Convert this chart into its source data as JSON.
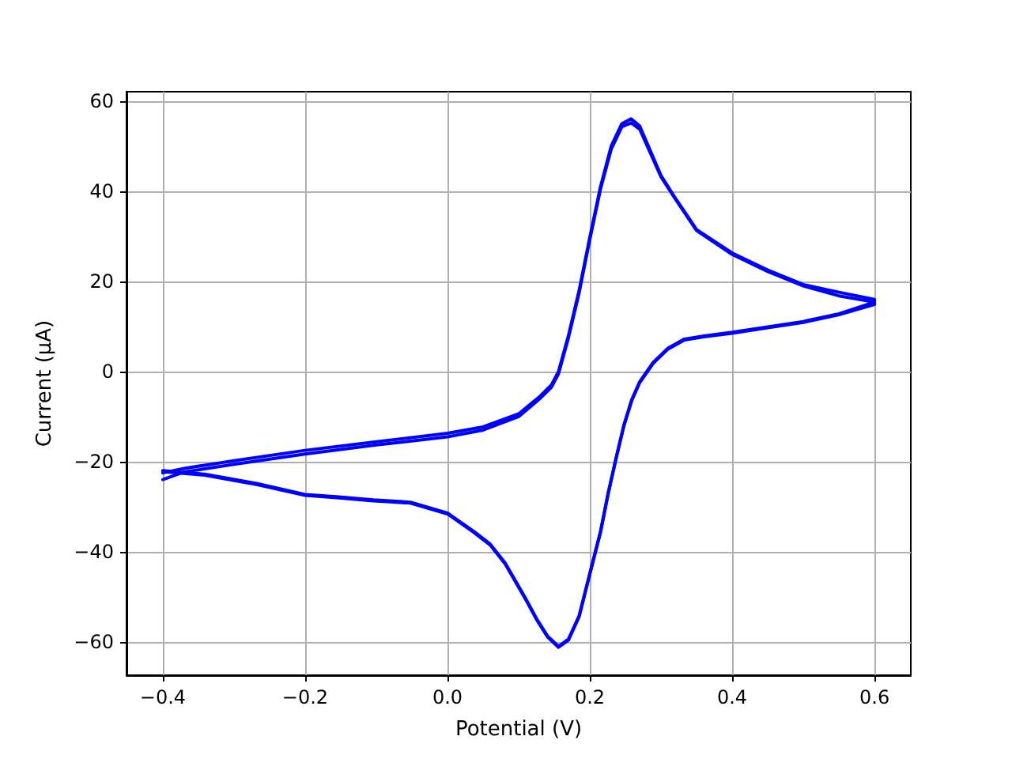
{
  "chart_data": {
    "type": "line",
    "xlabel": "Potential (V)",
    "ylabel": "Current (μA)",
    "xlim": [
      -0.451,
      0.651
    ],
    "ylim": [
      -67.4,
      62.1
    ],
    "xticks": [
      {
        "value": -0.4,
        "label": "−0.4"
      },
      {
        "value": -0.2,
        "label": "−0.2"
      },
      {
        "value": 0,
        "label": "0.0"
      },
      {
        "value": 0.2,
        "label": "0.2"
      },
      {
        "value": 0.4,
        "label": "0.4"
      },
      {
        "value": 0.6,
        "label": "0.6"
      }
    ],
    "yticks": [
      {
        "value": -60,
        "label": "−60"
      },
      {
        "value": -40,
        "label": "−40"
      },
      {
        "value": -20,
        "label": "−20"
      },
      {
        "value": 0,
        "label": "0"
      },
      {
        "value": 20,
        "label": "20"
      },
      {
        "value": 40,
        "label": "40"
      },
      {
        "value": 60,
        "label": "60"
      }
    ],
    "grid": true,
    "marker": "none",
    "line_style": "solid",
    "series": [
      {
        "color": "#0000ff",
        "x": [
          -0.4,
          -0.37,
          -0.3,
          -0.2,
          -0.1,
          0,
          0.05,
          0.1,
          0.13,
          0.146,
          0.156,
          0.17,
          0.185,
          0.2,
          0.215,
          0.23,
          0.245,
          0.258,
          0.27,
          0.285,
          0.3,
          0.318,
          0.35,
          0.4,
          0.45,
          0.5,
          0.55,
          0.6,
          0.6,
          0.55,
          0.5,
          0.45,
          0.4,
          0.36,
          0.333,
          0.31,
          0.289,
          0.27,
          0.259,
          0.248,
          0.237,
          0.226,
          0.215,
          0.2,
          0.185,
          0.17,
          0.156,
          0.141,
          0.125,
          0.111,
          0.095,
          0.081,
          0.06,
          0.037,
          0,
          -0.052,
          -0.104,
          -0.156,
          -0.2,
          -0.267,
          -0.341,
          -0.4
        ],
        "values": [
          -22.5,
          -21.5,
          -19.8,
          -17.5,
          -15.6,
          -13.7,
          -12.3,
          -9.4,
          -5.5,
          -3,
          0,
          8,
          18,
          29.8,
          41,
          50,
          55,
          56.1,
          54.5,
          49,
          43.5,
          39,
          31.5,
          26.3,
          22.5,
          19.3,
          17.6,
          16,
          14.9,
          12.6,
          10.9,
          9.7,
          8.5,
          7.7,
          7,
          5,
          1.8,
          -2.5,
          -6.4,
          -12,
          -19.3,
          -27,
          -35.7,
          -45,
          -54.4,
          -59.6,
          -61.2,
          -59,
          -55,
          -50.9,
          -46.5,
          -42.7,
          -38.5,
          -35.7,
          -31.6,
          -29.2,
          -28.7,
          -28,
          -27.5,
          -25.1,
          -23,
          -22.2
        ]
      },
      {
        "color": "#0000ff",
        "x": [
          -0.4,
          -0.37,
          -0.3,
          -0.2,
          -0.1,
          0,
          0.05,
          0.1,
          0.13,
          0.146,
          0.156,
          0.17,
          0.185,
          0.2,
          0.215,
          0.23,
          0.245,
          0.258,
          0.27,
          0.285,
          0.3,
          0.318,
          0.35,
          0.4,
          0.45,
          0.5,
          0.55,
          0.6,
          0.6,
          0.55,
          0.5,
          0.45,
          0.4,
          0.36,
          0.333,
          0.31,
          0.289,
          0.27,
          0.259,
          0.248,
          0.237,
          0.226,
          0.215,
          0.2,
          0.185,
          0.17,
          0.156,
          0.141,
          0.125,
          0.111,
          0.095,
          0.081,
          0.06,
          0.037,
          0,
          -0.052,
          -0.104,
          -0.156,
          -0.2,
          -0.267,
          -0.341,
          -0.4
        ],
        "values": [
          -24,
          -22.3,
          -20.6,
          -18.3,
          -16.3,
          -14.5,
          -13,
          -10,
          -6,
          -3.5,
          -0.5,
          7.5,
          17.5,
          29.3,
          40.5,
          49.3,
          54.3,
          55.2,
          53.8,
          48.5,
          43.2,
          38.8,
          31.3,
          26,
          22.2,
          19,
          16.8,
          15.4,
          15.2,
          12.8,
          11.1,
          9.9,
          8.7,
          7.9,
          7.2,
          5.2,
          2,
          -2.3,
          -6.2,
          -11.8,
          -19.1,
          -26.8,
          -35.5,
          -44.8,
          -54.2,
          -59.4,
          -61,
          -58.8,
          -54.8,
          -50.7,
          -46.3,
          -42.5,
          -38.3,
          -35.5,
          -31.4,
          -29,
          -28.5,
          -27.8,
          -27.3,
          -24.9,
          -22.8,
          -22
        ]
      }
    ]
  }
}
